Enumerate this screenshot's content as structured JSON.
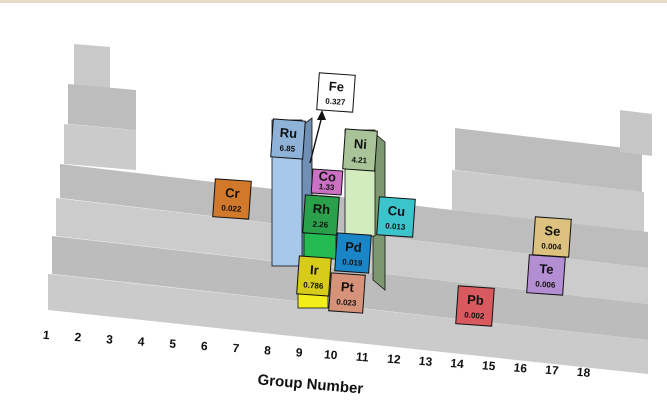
{
  "chart_data": {
    "type": "bar",
    "title": "",
    "xlabel": "Group Number",
    "ylabel": "",
    "categories": [
      "1",
      "2",
      "3",
      "4",
      "5",
      "6",
      "7",
      "8",
      "9",
      "10",
      "11",
      "12",
      "13",
      "14",
      "15",
      "16",
      "17",
      "18"
    ],
    "elements": [
      {
        "symbol": "Cr",
        "group": "6",
        "value": "0.022",
        "color": "#d2782a"
      },
      {
        "symbol": "Ru",
        "group": "8",
        "value": "6.85",
        "color": "#8fb2d8"
      },
      {
        "symbol": "Fe",
        "group": "8",
        "value": "0.327",
        "color": "#ffffff"
      },
      {
        "symbol": "Co",
        "group": "9",
        "value": "1.33",
        "color": "#cc70c4"
      },
      {
        "symbol": "Rh",
        "group": "9",
        "value": "2.26",
        "color": "#2aa04a"
      },
      {
        "symbol": "Ir",
        "group": "9",
        "value": "0.786",
        "color": "#d8cc1a"
      },
      {
        "symbol": "Ni",
        "group": "10",
        "value": "4.21",
        "color": "#a8c498"
      },
      {
        "symbol": "Pd",
        "group": "10",
        "value": "0.019",
        "color": "#1a86c8"
      },
      {
        "symbol": "Pt",
        "group": "10",
        "value": "0.023",
        "color": "#d6937a"
      },
      {
        "symbol": "Cu",
        "group": "11",
        "value": "0.013",
        "color": "#3cc4cc"
      },
      {
        "symbol": "Pb",
        "group": "14",
        "value": "0.002",
        "color": "#d85a5e"
      },
      {
        "symbol": "Se",
        "group": "16",
        "value": "0.004",
        "color": "#dcc27e"
      },
      {
        "symbol": "Te",
        "group": "16",
        "value": "0.006",
        "color": "#b48ed2"
      }
    ]
  }
}
